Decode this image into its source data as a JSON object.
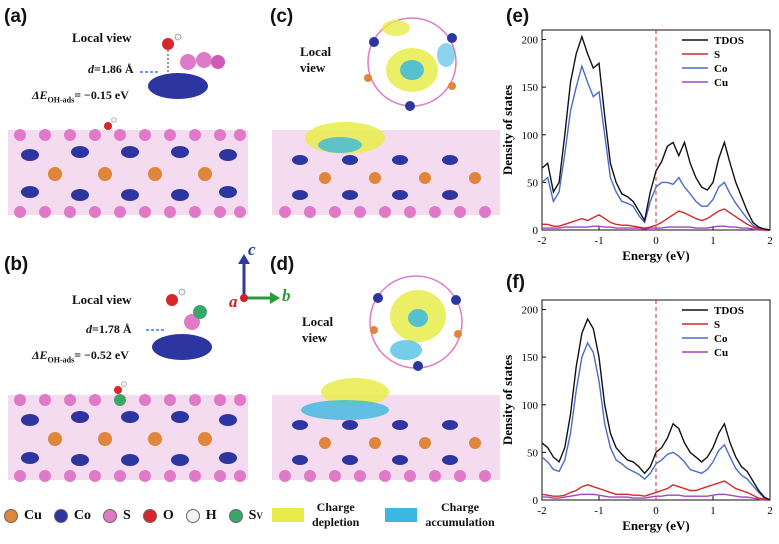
{
  "panels": {
    "a": {
      "letter": "(a)",
      "local_view": "Local view",
      "d_prefix": "d",
      "d_value": "=1.86 Å",
      "e_prefix": "ΔE",
      "e_sub": "OH-ads",
      "e_value": "= −0.15 eV"
    },
    "b": {
      "letter": "(b)",
      "local_view": "Local view",
      "d_prefix": "d",
      "d_value": "=1.78 Å",
      "e_prefix": "ΔE",
      "e_sub": "OH-ads",
      "e_value": "= −0.52 eV"
    },
    "c": {
      "letter": "(c)",
      "local_line1": "Local",
      "local_line2": "view"
    },
    "d": {
      "letter": "(d)",
      "local_line1": "Local",
      "local_line2": "view"
    },
    "e": {
      "letter": "(e)"
    },
    "f": {
      "letter": "(f)"
    }
  },
  "axes_glyph": {
    "c": "c",
    "a": "a",
    "b": "b",
    "c_color": "#2f3a9e",
    "a_color": "#d0202a",
    "b_color": "#2c9a3c"
  },
  "atom_legend": [
    {
      "label": "Cu",
      "color": "#e0863a"
    },
    {
      "label": "Co",
      "color": "#2d35a0"
    },
    {
      "label": "S",
      "color": "#e07ac8"
    },
    {
      "label": "O",
      "color": "#d8262a"
    },
    {
      "label": "H",
      "color": "#f2f2f2"
    },
    {
      "label": "S",
      "sub": "V",
      "color": "#3aa66a"
    }
  ],
  "charge_legend": [
    {
      "line1": "Charge",
      "line2": "depletion",
      "color": "#e8ec4a"
    },
    {
      "line1": "Charge",
      "line2": "accumulation",
      "color": "#3cb8e0"
    }
  ],
  "chart_data": [
    {
      "panel": "(e)",
      "type": "line",
      "xlabel": "Energy (eV)",
      "ylabel": "Density of states",
      "xlim": [
        -2,
        2
      ],
      "ylim": [
        0,
        210
      ],
      "xticks": [
        "-2",
        "-1",
        "0",
        "1",
        "2"
      ],
      "yticks": [
        "0",
        "50",
        "100",
        "150",
        "200"
      ],
      "fermi_line": 0,
      "legend_position": "top-right",
      "x": [
        -2.0,
        -1.9,
        -1.8,
        -1.7,
        -1.6,
        -1.5,
        -1.4,
        -1.3,
        -1.2,
        -1.1,
        -1.0,
        -0.9,
        -0.8,
        -0.7,
        -0.6,
        -0.5,
        -0.4,
        -0.3,
        -0.2,
        -0.1,
        0.0,
        0.1,
        0.2,
        0.3,
        0.4,
        0.5,
        0.6,
        0.7,
        0.8,
        0.9,
        1.0,
        1.1,
        1.2,
        1.3,
        1.4,
        1.5,
        1.6,
        1.7,
        1.8,
        1.9,
        2.0
      ],
      "series": [
        {
          "name": "TDOS",
          "color": "#111111",
          "values": [
            65,
            70,
            40,
            50,
            100,
            155,
            185,
            203,
            185,
            170,
            175,
            120,
            70,
            50,
            38,
            35,
            30,
            20,
            10,
            40,
            62,
            72,
            88,
            92,
            78,
            92,
            70,
            55,
            45,
            42,
            50,
            75,
            92,
            70,
            50,
            35,
            20,
            8,
            3,
            1,
            0
          ]
        },
        {
          "name": "S",
          "color": "#d42a2a",
          "values": [
            6,
            6,
            4,
            4,
            6,
            8,
            10,
            12,
            10,
            13,
            16,
            12,
            8,
            6,
            5,
            5,
            4,
            3,
            2,
            3,
            5,
            8,
            12,
            16,
            20,
            18,
            15,
            12,
            10,
            12,
            16,
            20,
            22,
            18,
            14,
            10,
            6,
            3,
            1,
            0,
            0
          ]
        },
        {
          "name": "Co",
          "color": "#4a6cc8",
          "values": [
            50,
            55,
            30,
            40,
            80,
            125,
            150,
            172,
            155,
            140,
            145,
            100,
            55,
            40,
            30,
            28,
            25,
            15,
            8,
            30,
            45,
            50,
            50,
            48,
            55,
            45,
            38,
            30,
            25,
            25,
            32,
            45,
            50,
            38,
            28,
            20,
            12,
            5,
            2,
            0,
            0
          ]
        },
        {
          "name": "Cu",
          "color": "#a245c0",
          "values": [
            2,
            2,
            2,
            2,
            3,
            3,
            3,
            3,
            3,
            4,
            4,
            3,
            3,
            2,
            2,
            2,
            2,
            2,
            1,
            2,
            2,
            2,
            3,
            3,
            3,
            3,
            3,
            2,
            2,
            2,
            3,
            4,
            4,
            3,
            3,
            2,
            2,
            1,
            0,
            0,
            0
          ]
        }
      ]
    },
    {
      "panel": "(f)",
      "type": "line",
      "xlabel": "Energy (eV)",
      "ylabel": "Density of states",
      "xlim": [
        -2,
        2
      ],
      "ylim": [
        0,
        210
      ],
      "xticks": [
        "-2",
        "-1",
        "0",
        "1",
        "2"
      ],
      "yticks": [
        "0",
        "50",
        "100",
        "150",
        "200"
      ],
      "fermi_line": 0,
      "legend_position": "top-right",
      "x": [
        -2.0,
        -1.9,
        -1.8,
        -1.7,
        -1.6,
        -1.5,
        -1.4,
        -1.3,
        -1.2,
        -1.1,
        -1.0,
        -0.9,
        -0.8,
        -0.7,
        -0.6,
        -0.5,
        -0.4,
        -0.3,
        -0.2,
        -0.1,
        0.0,
        0.1,
        0.2,
        0.3,
        0.4,
        0.5,
        0.6,
        0.7,
        0.8,
        0.9,
        1.0,
        1.1,
        1.2,
        1.3,
        1.4,
        1.5,
        1.6,
        1.7,
        1.8,
        1.9,
        2.0
      ],
      "series": [
        {
          "name": "TDOS",
          "color": "#111111",
          "values": [
            60,
            55,
            45,
            40,
            55,
            90,
            140,
            175,
            190,
            180,
            150,
            100,
            70,
            55,
            48,
            42,
            40,
            35,
            28,
            35,
            50,
            55,
            65,
            80,
            75,
            60,
            50,
            45,
            40,
            45,
            55,
            70,
            80,
            60,
            45,
            35,
            30,
            20,
            10,
            3,
            0
          ]
        },
        {
          "name": "S",
          "color": "#d42a2a",
          "values": [
            6,
            5,
            4,
            4,
            5,
            8,
            10,
            14,
            16,
            14,
            12,
            10,
            8,
            6,
            6,
            6,
            5,
            5,
            4,
            6,
            8,
            10,
            12,
            16,
            14,
            12,
            10,
            10,
            12,
            14,
            16,
            18,
            20,
            16,
            12,
            10,
            8,
            5,
            2,
            1,
            0
          ]
        },
        {
          "name": "Co",
          "color": "#4a6cc8",
          "values": [
            45,
            40,
            32,
            30,
            42,
            70,
            115,
            150,
            165,
            155,
            125,
            80,
            55,
            42,
            38,
            33,
            30,
            27,
            22,
            28,
            38,
            42,
            48,
            50,
            46,
            40,
            32,
            30,
            28,
            32,
            40,
            52,
            58,
            45,
            33,
            26,
            22,
            15,
            8,
            2,
            0
          ]
        },
        {
          "name": "Cu",
          "color": "#a245c0",
          "values": [
            3,
            3,
            2,
            2,
            3,
            4,
            5,
            6,
            6,
            6,
            5,
            4,
            3,
            3,
            3,
            3,
            2,
            2,
            2,
            3,
            4,
            4,
            5,
            5,
            5,
            4,
            4,
            4,
            4,
            4,
            5,
            6,
            6,
            5,
            4,
            3,
            3,
            2,
            1,
            0,
            0
          ]
        }
      ]
    }
  ]
}
